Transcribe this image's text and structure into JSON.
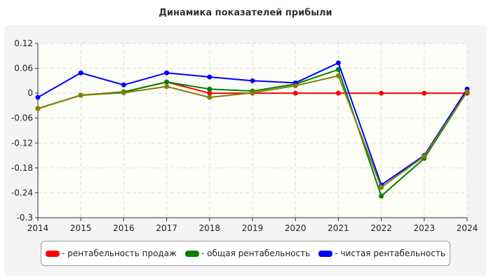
{
  "chart_data": {
    "type": "line",
    "title": "Динамика показателей прибыли",
    "x": [
      2014,
      2015,
      2016,
      2017,
      2018,
      2019,
      2020,
      2021,
      2022,
      2023,
      2024
    ],
    "ylim": [
      -0.3,
      0.12
    ],
    "yticks": [
      "0.12",
      "0.06",
      "0",
      "-0.06",
      "-0.12",
      "-0.18",
      "-0.24",
      "-0.3"
    ],
    "ytick_values": [
      0.12,
      0.06,
      0,
      -0.06,
      -0.12,
      -0.18,
      -0.24,
      -0.3
    ],
    "grid": true,
    "legend_position": "bottom",
    "series": [
      {
        "name": "- рентабельность продаж",
        "color": "#ff0000",
        "values": [
          -0.037,
          -0.005,
          0.003,
          0.027,
          0,
          0,
          0,
          0,
          0,
          0,
          0
        ]
      },
      {
        "name": "- общая рентабельность",
        "color": "#008000",
        "values": [
          -0.037,
          -0.005,
          0.003,
          0.027,
          0.01,
          0.005,
          0.022,
          0.057,
          -0.248,
          -0.157,
          0.004
        ]
      },
      {
        "name": "- чистая рентабельность",
        "color": "#0000ff",
        "values": [
          -0.01,
          0.049,
          0.02,
          0.049,
          0.039,
          0.03,
          0.025,
          0.073,
          -0.221,
          -0.15,
          0.01
        ]
      },
      {
        "color": "#808000",
        "values": [
          -0.037,
          -0.005,
          0.001,
          0.016,
          -0.01,
          0.001,
          0.018,
          0.042,
          -0.227,
          -0.152,
          0.004
        ]
      }
    ]
  }
}
